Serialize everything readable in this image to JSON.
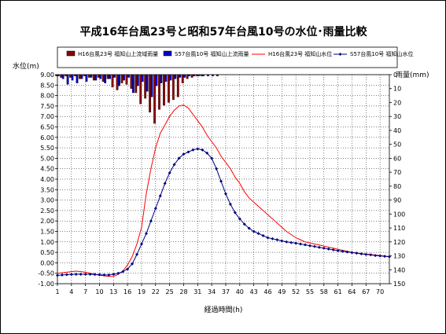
{
  "chart_data": {
    "type": "line",
    "title": "平成16年台風23号と昭和57年台風10号の水位･雨量比較",
    "xlabel": "経過時間(h)",
    "ylabel_left": "水位(m)",
    "ylabel_right": "雨量(mm)",
    "ylim_left": [
      -1.0,
      9.0
    ],
    "ylim_right": [
      0,
      150
    ],
    "right_axis_inverted": true,
    "grid": true,
    "legend_position": "top",
    "x": [
      1,
      2,
      3,
      4,
      5,
      6,
      7,
      8,
      9,
      10,
      11,
      12,
      13,
      14,
      15,
      16,
      17,
      18,
      19,
      20,
      21,
      22,
      23,
      24,
      25,
      26,
      27,
      28,
      29,
      30,
      31,
      32,
      33,
      34,
      35,
      36,
      37,
      38,
      39,
      40,
      41,
      42,
      43,
      44,
      45,
      46,
      47,
      48,
      49,
      50,
      51,
      52,
      53,
      54,
      55,
      56,
      57,
      58,
      59,
      60,
      61,
      62,
      63,
      64,
      65,
      66,
      67,
      68,
      69,
      70,
      71,
      72
    ],
    "x_ticks": [
      1,
      4,
      7,
      10,
      13,
      16,
      19,
      22,
      25,
      28,
      31,
      34,
      37,
      40,
      43,
      46,
      49,
      52,
      55,
      58,
      61,
      64,
      67,
      70
    ],
    "y_ticks_left": [
      "9.00",
      "8.50",
      "8.00",
      "7.50",
      "7.00",
      "6.50",
      "6.00",
      "5.50",
      "5.00",
      "4.50",
      "4.00",
      "3.50",
      "3.00",
      "2.50",
      "2.00",
      "1.50",
      "1.00",
      "0.50",
      "0.00",
      "-0.50",
      "-1.00"
    ],
    "y_ticks_right": [
      "0",
      "10",
      "20",
      "30",
      "40",
      "50",
      "60",
      "70",
      "80",
      "90",
      "100",
      "110",
      "120",
      "130",
      "140",
      "150"
    ],
    "series": [
      {
        "name": "H16台風23号 福知山上流域雨量",
        "kind": "rain",
        "color": "#8b0000",
        "values": [
          1,
          2,
          1,
          2,
          1,
          3,
          1,
          2,
          4,
          2,
          5,
          3,
          9,
          11,
          6,
          7,
          10,
          13,
          21,
          17,
          27,
          35,
          25,
          22,
          20,
          18,
          16,
          6,
          3,
          2,
          1,
          1,
          0,
          0,
          0,
          0,
          0,
          0,
          0,
          0,
          0,
          0,
          0,
          0,
          0,
          0,
          0,
          0,
          0,
          0,
          0,
          0,
          0,
          0,
          0,
          0,
          0,
          0,
          0,
          0,
          0,
          0,
          0,
          0,
          0,
          0,
          0,
          0,
          0,
          0,
          0,
          0
        ]
      },
      {
        "name": "S57台風10号 福知山上流雨量",
        "kind": "rain",
        "color": "#0000cd",
        "values": [
          1,
          3,
          7,
          4,
          6,
          3,
          5,
          2,
          4,
          3,
          6,
          3,
          2,
          8,
          4,
          2,
          13,
          8,
          5,
          12,
          16,
          8,
          6,
          5,
          4,
          3,
          2,
          2,
          1,
          1,
          1,
          1,
          1,
          1,
          1,
          0,
          0,
          0,
          0,
          0,
          0,
          0,
          0,
          0,
          0,
          0,
          0,
          0,
          0,
          0,
          0,
          0,
          0,
          0,
          0,
          0,
          0,
          0,
          0,
          0,
          0,
          0,
          0,
          0,
          0,
          0,
          0,
          0,
          0,
          0,
          0,
          0
        ]
      },
      {
        "name": "H16台風23号 福知山水位",
        "kind": "level",
        "color": "#ff0000",
        "values": [
          -0.5,
          -0.48,
          -0.45,
          -0.42,
          -0.4,
          -0.42,
          -0.45,
          -0.5,
          -0.55,
          -0.6,
          -0.62,
          -0.65,
          -0.65,
          -0.55,
          -0.4,
          -0.1,
          0.3,
          0.9,
          1.7,
          3.3,
          4.5,
          5.5,
          6.2,
          6.6,
          7.0,
          7.3,
          7.5,
          7.55,
          7.4,
          7.1,
          6.8,
          6.5,
          6.1,
          5.8,
          5.5,
          5.1,
          4.8,
          4.5,
          4.1,
          3.8,
          3.4,
          3.1,
          2.9,
          2.7,
          2.5,
          2.3,
          2.1,
          1.9,
          1.7,
          1.5,
          1.35,
          1.2,
          1.1,
          1.0,
          0.95,
          0.9,
          0.85,
          0.8,
          0.75,
          0.7,
          0.65,
          0.6,
          0.55,
          0.5,
          0.47,
          0.44,
          0.42,
          0.4,
          0.37,
          0.35,
          0.32,
          0.3
        ]
      },
      {
        "name": "S57台風10号 福知山水位",
        "kind": "level",
        "color": "#000080",
        "values": [
          -0.6,
          -0.58,
          -0.57,
          -0.56,
          -0.55,
          -0.55,
          -0.55,
          -0.55,
          -0.56,
          -0.57,
          -0.58,
          -0.58,
          -0.55,
          -0.5,
          -0.42,
          -0.3,
          -0.05,
          0.4,
          0.9,
          1.4,
          2.0,
          2.6,
          3.2,
          3.8,
          4.3,
          4.7,
          5.0,
          5.2,
          5.3,
          5.4,
          5.45,
          5.4,
          5.25,
          5.0,
          4.5,
          3.9,
          3.3,
          2.8,
          2.4,
          2.1,
          1.85,
          1.65,
          1.5,
          1.4,
          1.3,
          1.2,
          1.15,
          1.1,
          1.05,
          1.0,
          0.97,
          0.94,
          0.9,
          0.86,
          0.82,
          0.78,
          0.74,
          0.7,
          0.66,
          0.62,
          0.58,
          0.55,
          0.52,
          0.49,
          0.46,
          0.43,
          0.4,
          0.38,
          0.35,
          0.33,
          0.31,
          0.29
        ]
      }
    ]
  }
}
